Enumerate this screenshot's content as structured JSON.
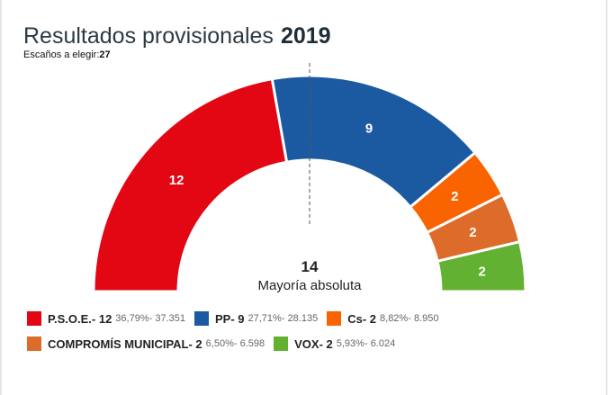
{
  "title": "Resultados provisionales",
  "year": "2019",
  "seats_label": "Escaños a elegir:",
  "seats_total": "27",
  "majority": {
    "value": "14",
    "label": "Mayoría absoluta"
  },
  "chart_data": {
    "type": "pie",
    "subtype": "parliament-semicircle",
    "total_seats": 27,
    "majority": 14,
    "parties": [
      {
        "name": "P.S.O.E.",
        "seats": 12,
        "pct": "36,79%",
        "votes": "37.351",
        "color": "#e30613",
        "label": "P.S.O.E.- 12"
      },
      {
        "name": "PP",
        "seats": 9,
        "pct": "27,71%",
        "votes": "28.135",
        "color": "#1b5aa0",
        "label": "PP- 9"
      },
      {
        "name": "Cs",
        "seats": 2,
        "pct": "8,82%",
        "votes": "8.950",
        "color": "#fa6400",
        "label": "Cs- 2"
      },
      {
        "name": "COMPROMÍS MUNICIPAL",
        "seats": 2,
        "pct": "6,50%",
        "votes": "6.598",
        "color": "#dd6b2a",
        "label": "COMPROMÍS MUNICIPAL- 2"
      },
      {
        "name": "VOX",
        "seats": 2,
        "pct": "5,93%",
        "votes": "6.024",
        "color": "#63b132",
        "label": "VOX- 2"
      }
    ]
  }
}
